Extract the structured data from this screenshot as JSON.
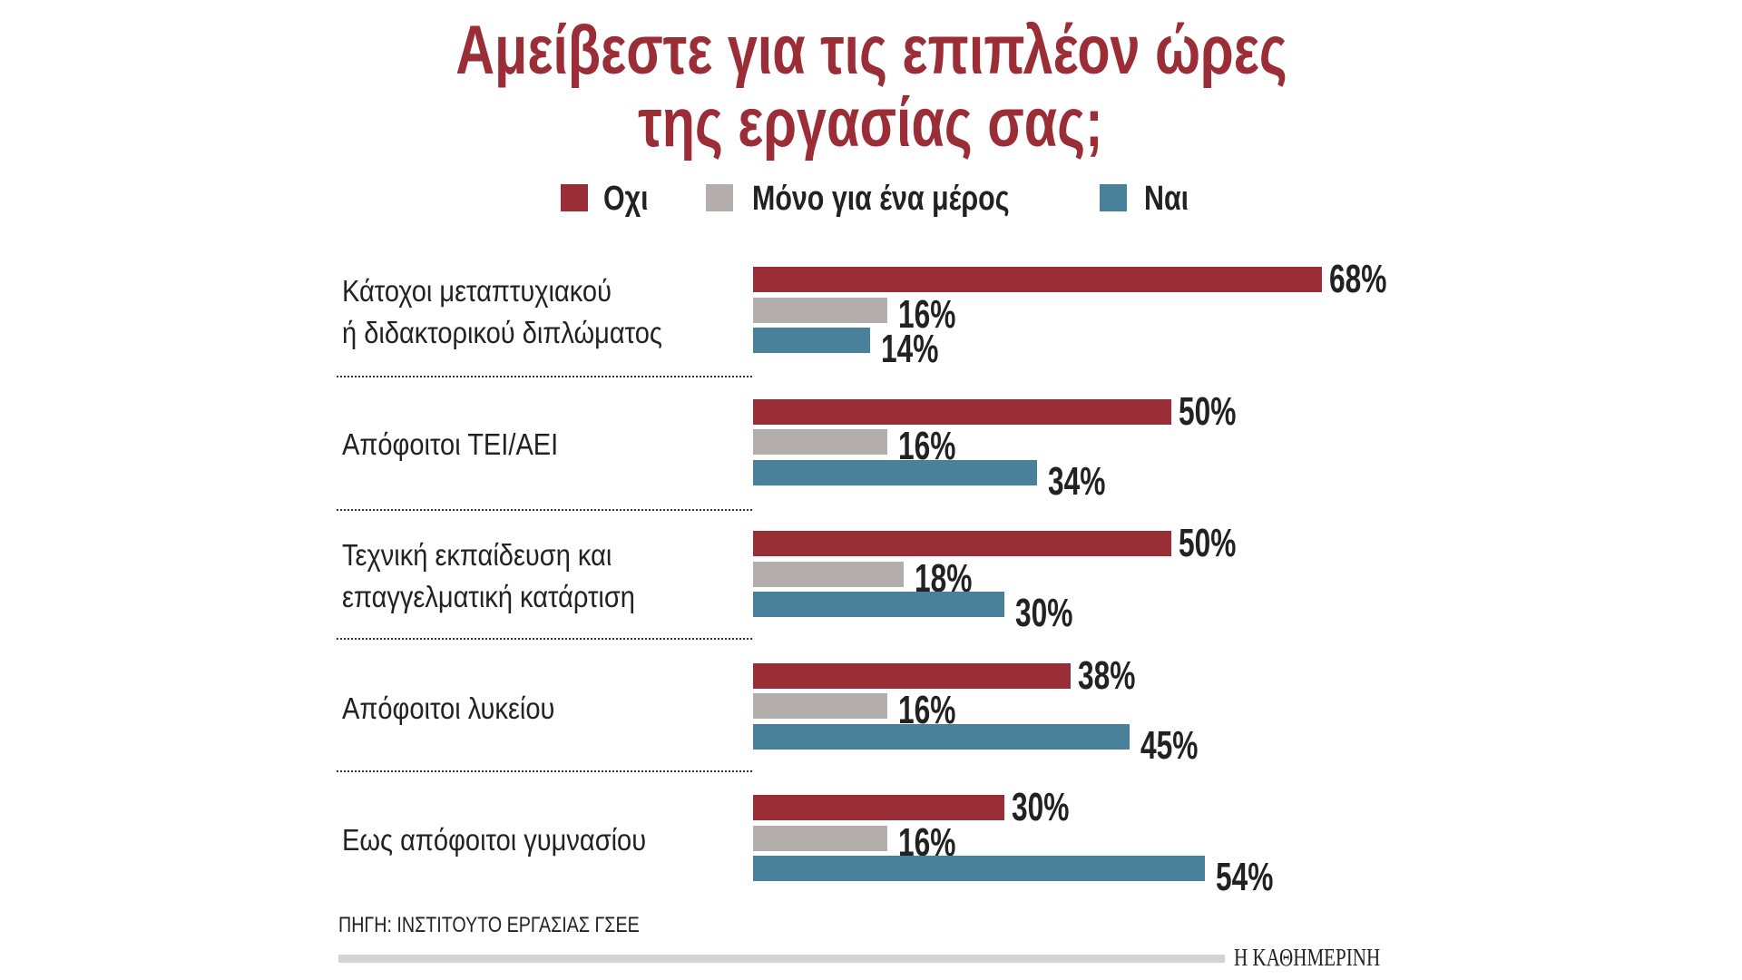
{
  "chart_data": {
    "type": "bar",
    "orientation": "horizontal",
    "title": [
      "Αμείβεστε για τις επιπλέον ώρες",
      "της εργασίας σας;"
    ],
    "categories": [
      [
        "Κάτοχοι μεταπτυχιακού",
        "ή διδακτορικού διπλώματος"
      ],
      [
        "Απόφοιτοι ΤΕΙ/ΑΕΙ"
      ],
      [
        "Τεχνική εκπαίδευση και",
        "επαγγελματική κατάρτιση"
      ],
      [
        "Απόφοιτοι λυκείου"
      ],
      [
        "Εως απόφοιτοι γυμνασίου"
      ]
    ],
    "series": [
      {
        "name": "Οχι",
        "color": "#992e36",
        "values": [
          68,
          50,
          50,
          38,
          30
        ]
      },
      {
        "name": "Μόνο για ένα μέρος",
        "color": "#b3aeac",
        "values": [
          16,
          16,
          18,
          16,
          16
        ]
      },
      {
        "name": "Ναι",
        "color": "#4a819a",
        "values": [
          14,
          34,
          30,
          45,
          54
        ]
      }
    ],
    "value_suffix": "%",
    "legend_position": "top-center",
    "grid": false
  },
  "source": "ΠΗΓΗ: ΙΝΣΤΙΤΟΥΤΟ ΕΡΓΑΣΙΑΣ ΓΣΕΕ",
  "logo": "Η ΚΑΘΗΜΕΡΙΝΗ"
}
